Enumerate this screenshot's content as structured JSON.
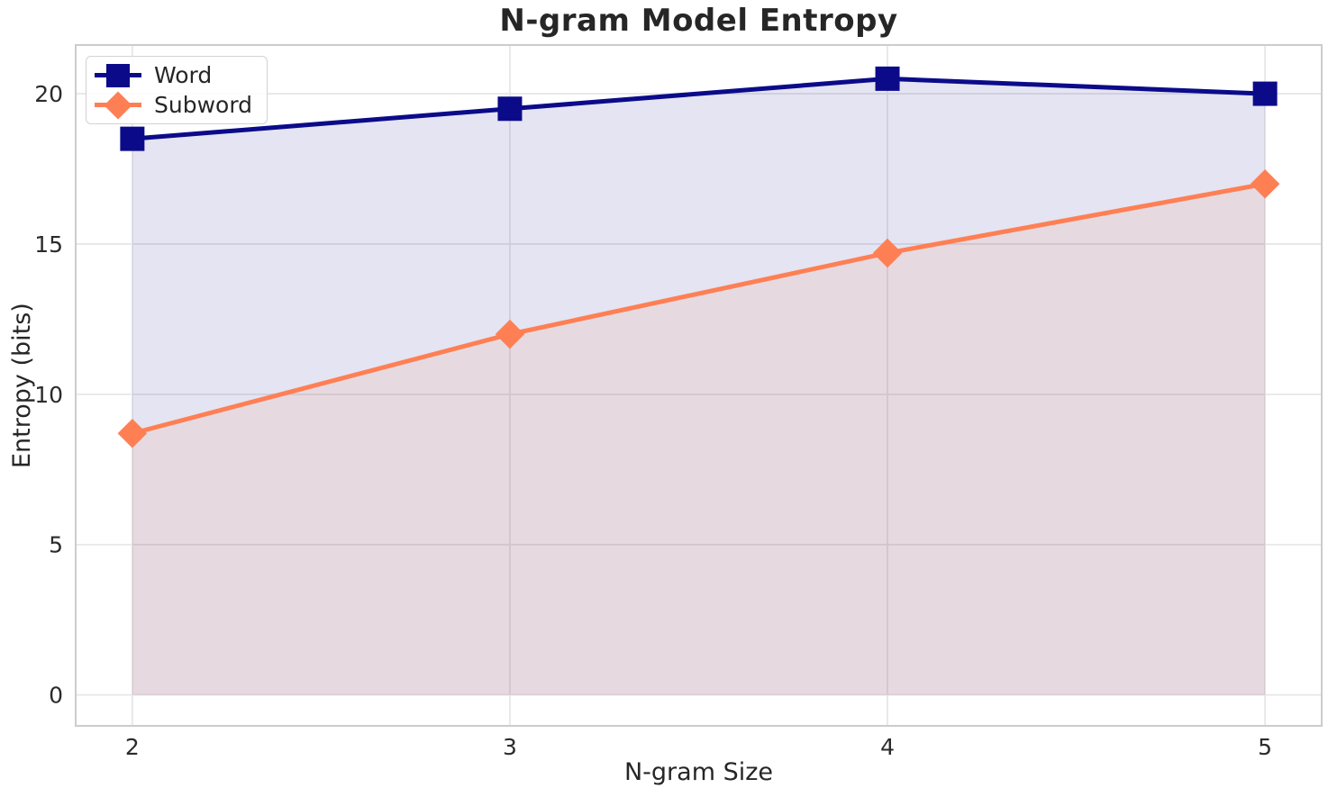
{
  "chart_data": {
    "type": "line",
    "title": "N-gram Model Entropy",
    "xlabel": "N-gram Size",
    "ylabel": "Entropy (bits)",
    "x": [
      2,
      3,
      4,
      5
    ],
    "series": [
      {
        "name": "Word",
        "values": [
          18.5,
          19.5,
          20.5,
          20.0
        ],
        "color": "#0b0b8a",
        "marker": "square",
        "fill_to_zero": true
      },
      {
        "name": "Subword",
        "values": [
          8.7,
          12.0,
          14.7,
          17.0
        ],
        "color": "#ff7f54",
        "marker": "diamond",
        "fill_to_zero": true
      }
    ],
    "xticks": [
      "2",
      "3",
      "4",
      "5"
    ],
    "xtick_values": [
      2,
      3,
      4,
      5
    ],
    "yticks": [
      "0",
      "5",
      "10",
      "15",
      "20"
    ],
    "ytick_values": [
      0,
      5,
      10,
      15,
      20
    ],
    "xlim": [
      1.85,
      5.15
    ],
    "ylim": [
      -1.03,
      21.62
    ],
    "grid": true,
    "legend_position": "upper-left",
    "fill_opacity": 0.11,
    "line_width": 5,
    "background_color": "#ffffff",
    "grid_color": "#e7e7e7",
    "spine_color": "#cccccc",
    "text_color": "#2b2b2b",
    "title_color": "#262626"
  }
}
